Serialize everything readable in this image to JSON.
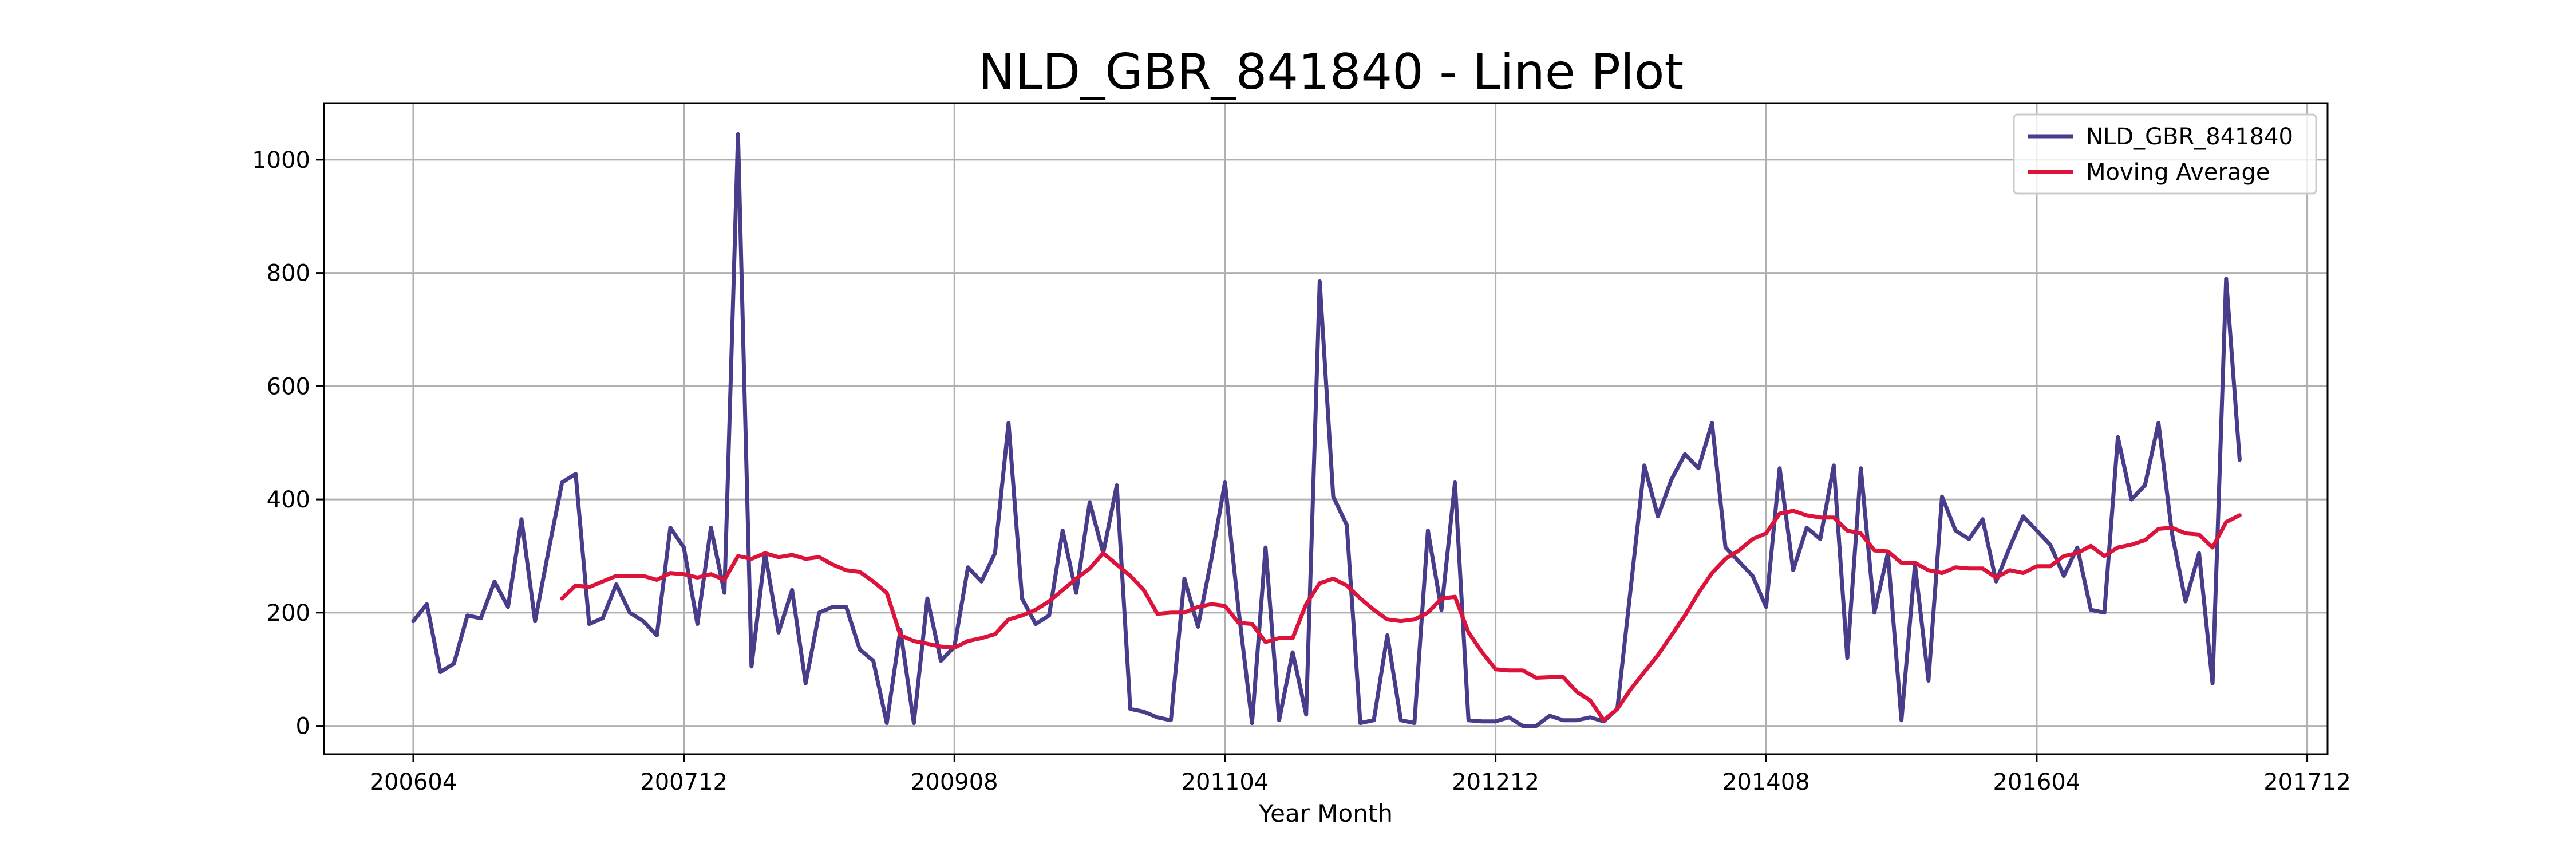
{
  "chart_data": {
    "type": "line",
    "title": "NLD_GBR_841840 - Line Plot",
    "xlabel": "Year Month",
    "ylabel": "",
    "x_ticks": [
      {
        "index": 0,
        "label": "200604"
      },
      {
        "index": 20,
        "label": "200712"
      },
      {
        "index": 40,
        "label": "200908"
      },
      {
        "index": 60,
        "label": "201104"
      },
      {
        "index": 80,
        "label": "201212"
      },
      {
        "index": 100,
        "label": "201408"
      },
      {
        "index": 120,
        "label": "201604"
      },
      {
        "index": 140,
        "label": "201712"
      }
    ],
    "y_ticks": [
      0,
      200,
      400,
      600,
      800,
      1000
    ],
    "ylim": [
      -50,
      1100
    ],
    "xlim_index": [
      -6.6,
      141.5
    ],
    "grid": true,
    "legend_position": "top-right",
    "series": [
      {
        "name": "NLD_GBR_841840",
        "color": "#483D8B",
        "values": [
          185,
          215,
          95,
          110,
          195,
          190,
          255,
          210,
          365,
          185,
          310,
          430,
          445,
          180,
          190,
          250,
          200,
          185,
          160,
          350,
          315,
          180,
          350,
          235,
          1045,
          105,
          305,
          165,
          240,
          75,
          200,
          210,
          210,
          135,
          115,
          5,
          170,
          5,
          225,
          115,
          140,
          280,
          255,
          305,
          535,
          225,
          180,
          195,
          345,
          235,
          395,
          305,
          425,
          30,
          25,
          15,
          10,
          260,
          175,
          295,
          430,
          205,
          5,
          315,
          10,
          130,
          20,
          785,
          405,
          355,
          5,
          10,
          160,
          10,
          5,
          345,
          205,
          430,
          10,
          8,
          8,
          15,
          0,
          0,
          18,
          10,
          10,
          15,
          8,
          30,
          245,
          460,
          370,
          435,
          480,
          455,
          535,
          315,
          290,
          265,
          210,
          455,
          275,
          350,
          330,
          460,
          120,
          455,
          200,
          305,
          10,
          285,
          80,
          405,
          345,
          330,
          365,
          255,
          315,
          370,
          345,
          320,
          265,
          315,
          205,
          200,
          510,
          400,
          425,
          535,
          340,
          220,
          305,
          75,
          790,
          470
        ]
      },
      {
        "name": "Moving Average",
        "color": "#DC143C",
        "start_index": 11,
        "values": [
          225,
          248,
          245,
          255,
          265,
          265,
          265,
          258,
          270,
          268,
          262,
          268,
          258,
          300,
          295,
          305,
          298,
          302,
          295,
          298,
          285,
          275,
          272,
          255,
          235,
          160,
          150,
          145,
          140,
          138,
          150,
          155,
          162,
          188,
          195,
          205,
          220,
          240,
          260,
          278,
          305,
          285,
          265,
          240,
          198,
          200,
          200,
          210,
          215,
          212,
          182,
          180,
          148,
          155,
          155,
          215,
          252,
          260,
          248,
          225,
          205,
          188,
          185,
          188,
          200,
          225,
          228,
          165,
          130,
          100,
          98,
          98,
          85,
          86,
          86,
          60,
          45,
          10,
          30,
          65,
          95,
          125,
          160,
          195,
          235,
          270,
          295,
          310,
          330,
          340,
          375,
          380,
          372,
          368,
          368,
          345,
          340,
          310,
          308,
          288,
          288,
          275,
          270,
          280,
          278,
          278,
          262,
          275,
          270,
          282,
          282,
          300,
          305,
          318,
          300,
          315,
          320,
          328,
          348,
          350,
          340,
          338,
          315,
          360,
          372
        ]
      }
    ]
  }
}
